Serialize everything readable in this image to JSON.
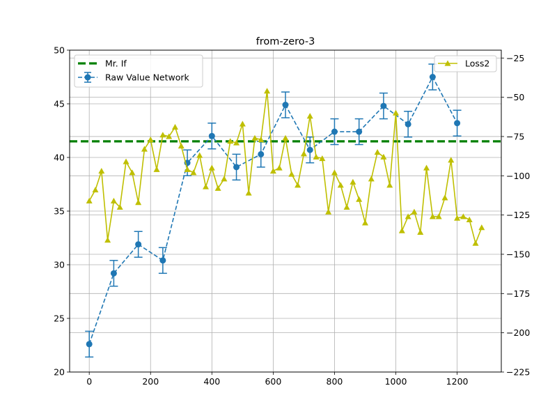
{
  "chart_data": {
    "type": "line",
    "title": "from-zero-3",
    "xlim": [
      -64,
      1344
    ],
    "ylim_left": [
      20,
      50
    ],
    "ylim_right": [
      -225,
      -20
    ],
    "x_ticks": [
      0,
      200,
      400,
      600,
      800,
      1000,
      1200
    ],
    "y_left_ticks": [
      20,
      25,
      30,
      35,
      40,
      45,
      50
    ],
    "y_right_ticks": [
      -225,
      -200,
      -175,
      -150,
      -125,
      -100,
      -75,
      -50,
      -25
    ],
    "grid": true,
    "colors": {
      "raw": "#1f77b4",
      "mrif": "#008000",
      "loss": "#bfbf00"
    },
    "legend_left": [
      {
        "label": "Mr. If",
        "series": "mrif"
      },
      {
        "label": "Raw Value Network",
        "series": "raw"
      }
    ],
    "legend_right": [
      {
        "label": "Loss2",
        "series": "loss"
      }
    ],
    "series": [
      {
        "key": "mrif",
        "name": "Mr. If",
        "axis": "left",
        "style": "dashed-hline",
        "value": 41.5
      },
      {
        "key": "raw",
        "name": "Raw Value Network",
        "axis": "left",
        "style": "dashed-marker-errorbar",
        "x": [
          0,
          80,
          160,
          240,
          320,
          400,
          480,
          560,
          640,
          720,
          800,
          880,
          960,
          1040,
          1120,
          1200
        ],
        "y": [
          22.6,
          29.2,
          31.9,
          30.4,
          39.5,
          42.0,
          39.1,
          40.3,
          44.9,
          40.7,
          42.4,
          42.4,
          44.8,
          43.1,
          47.5,
          43.2
        ],
        "err": [
          1.2,
          1.2,
          1.2,
          1.2,
          1.2,
          1.2,
          1.2,
          1.2,
          1.2,
          1.2,
          1.2,
          1.2,
          1.2,
          1.2,
          1.2,
          1.2
        ]
      },
      {
        "key": "loss",
        "name": "Loss2",
        "axis": "right",
        "style": "solid-triangle",
        "x": [
          0,
          20,
          40,
          60,
          80,
          100,
          120,
          140,
          160,
          180,
          200,
          220,
          240,
          260,
          280,
          300,
          320,
          340,
          360,
          380,
          400,
          420,
          440,
          460,
          480,
          500,
          520,
          540,
          560,
          580,
          600,
          620,
          640,
          660,
          680,
          700,
          720,
          740,
          760,
          780,
          800,
          820,
          840,
          860,
          880,
          900,
          920,
          940,
          960,
          980,
          1000,
          1020,
          1040,
          1060,
          1080,
          1100,
          1120,
          1140,
          1160,
          1180,
          1200,
          1220,
          1240,
          1260,
          1280
        ],
        "y": [
          -116,
          -109,
          -97,
          -141,
          -116,
          -120,
          -91,
          -98,
          -117,
          -83,
          -77,
          -96,
          -74,
          -75,
          -69,
          -81,
          -96,
          -98,
          -87,
          -107,
          -95,
          -108,
          -102,
          -78,
          -79,
          -67,
          -111,
          -76,
          -77,
          -46,
          -97,
          -95,
          -76,
          -99,
          -106,
          -86,
          -62,
          -88,
          -89,
          -123,
          -98,
          -106,
          -120,
          -104,
          -115,
          -130,
          -102,
          -85,
          -88,
          -106,
          -60,
          -135,
          -126,
          -123,
          -136,
          -95,
          -126,
          -126,
          -114,
          -90,
          -127,
          -126,
          -128,
          -143,
          -133
        ]
      }
    ]
  }
}
